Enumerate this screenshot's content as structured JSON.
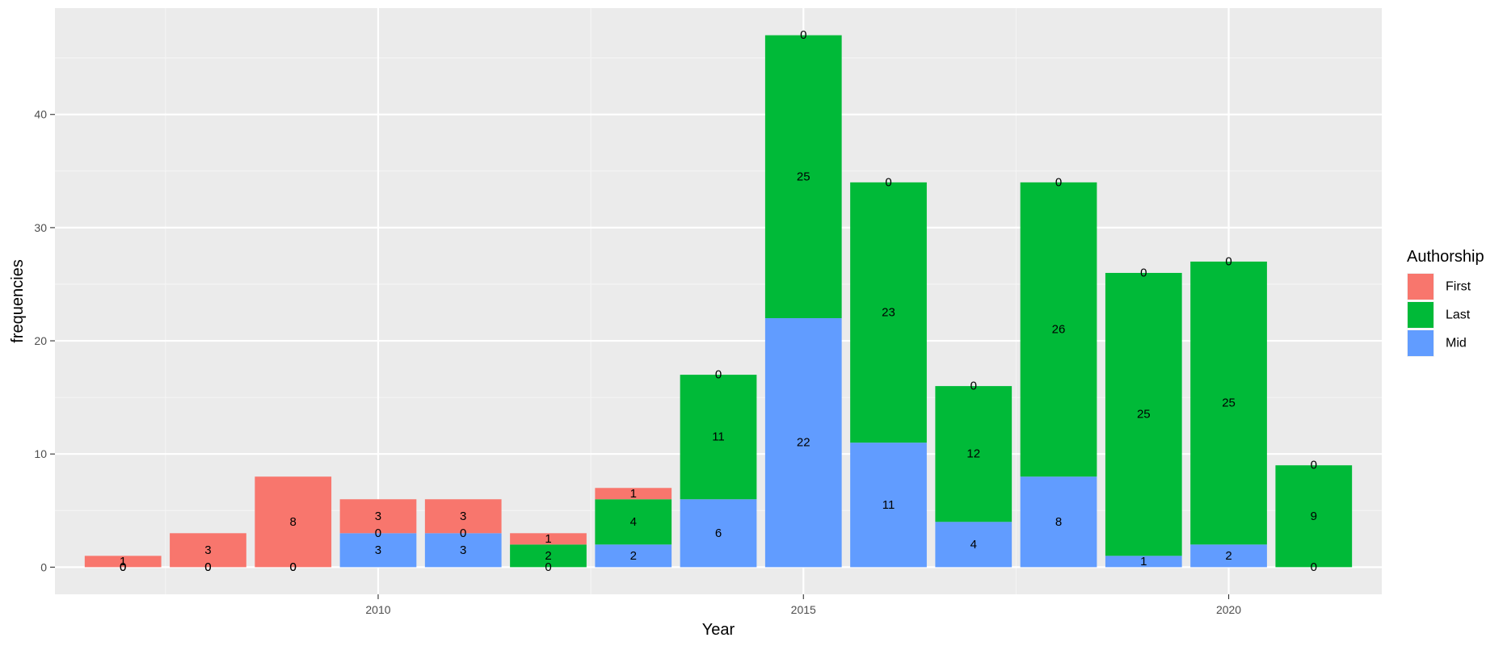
{
  "chart_data": {
    "type": "bar",
    "stacked": true,
    "x": [
      2007,
      2008,
      2009,
      2010,
      2011,
      2012,
      2013,
      2014,
      2015,
      2016,
      2017,
      2018,
      2019,
      2020,
      2021
    ],
    "series": [
      {
        "name": "Mid",
        "color": "#619CFF",
        "values": [
          0,
          0,
          0,
          3,
          3,
          0,
          2,
          6,
          22,
          11,
          4,
          8,
          1,
          2,
          0
        ]
      },
      {
        "name": "Last",
        "color": "#00BA38",
        "values": [
          0,
          0,
          0,
          0,
          0,
          2,
          4,
          11,
          25,
          23,
          12,
          26,
          25,
          25,
          9
        ]
      },
      {
        "name": "First",
        "color": "#F8766D",
        "values": [
          1,
          3,
          8,
          3,
          3,
          1,
          1,
          0,
          0,
          0,
          0,
          0,
          0,
          0,
          0
        ]
      }
    ],
    "labels": {
      "first": [
        "1",
        "3",
        "8",
        "3",
        "3",
        "1",
        "1",
        "0",
        "0",
        "0",
        "0",
        "0",
        "0",
        "0",
        "0"
      ],
      "last": [
        "0",
        "0",
        "0",
        "0",
        "0",
        "2",
        "4",
        "11",
        "25",
        "23",
        "12",
        "26",
        "25",
        "25",
        "9"
      ],
      "mid": [
        "0",
        "0",
        "0",
        "3",
        "3",
        "0",
        "2",
        "6",
        "22",
        "11",
        "4",
        "8",
        "1",
        "2",
        "0"
      ]
    },
    "xlabel": "Year",
    "ylabel": "frequencies",
    "xlim": [
      2006.2,
      2021.8
    ],
    "ylim": [
      -2.4,
      49.4
    ],
    "x_ticks": [
      2010,
      2015,
      2020
    ],
    "y_ticks": [
      0,
      10,
      20,
      30,
      40
    ],
    "grid": true,
    "legend": {
      "title": "Authorship",
      "position": "right",
      "items": [
        "First",
        "Last",
        "Mid"
      ],
      "colors": [
        "#F8766D",
        "#00BA38",
        "#619CFF"
      ]
    }
  }
}
